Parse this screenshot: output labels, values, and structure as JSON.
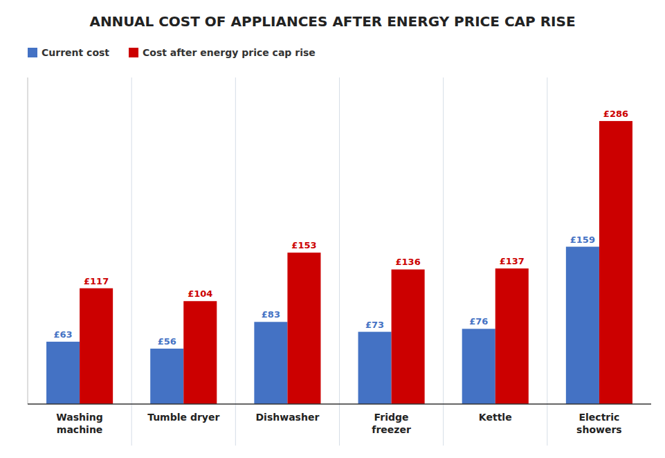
{
  "chart_data": {
    "type": "bar",
    "title": "ANNUAL COST OF APPLIANCES AFTER ENERGY PRICE CAP RISE",
    "categories": [
      "Washing\nmachine",
      "Tumble dryer",
      "Dishwasher",
      "Fridge\nfreezer",
      "Kettle",
      "Electric\nshowers"
    ],
    "series": [
      {
        "name": "Current cost",
        "color": "#4472c4",
        "values": [
          63,
          56,
          83,
          73,
          76,
          159
        ],
        "value_labels": [
          "£63",
          "£56",
          "£83",
          "£73",
          "£76",
          "£159"
        ]
      },
      {
        "name": "Cost after energy price cap rise",
        "color": "#cc0000",
        "values": [
          117,
          104,
          153,
          136,
          137,
          286
        ],
        "value_labels": [
          "£117",
          "£104",
          "£153",
          "£136",
          "£137",
          "£286"
        ]
      }
    ],
    "ylim": [
      0,
      330
    ],
    "data_labels": true,
    "tick_labels": "x",
    "grid": false,
    "legend": "upper left"
  }
}
